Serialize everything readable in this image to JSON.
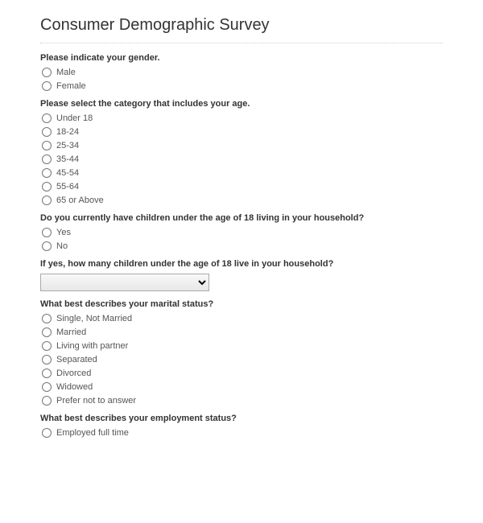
{
  "title": "Consumer Demographic Survey",
  "questions": {
    "gender": {
      "prompt": "Please indicate your gender.",
      "options": [
        "Male",
        "Female"
      ]
    },
    "age": {
      "prompt": "Please select the category that includes your age.",
      "options": [
        "Under 18",
        "18-24",
        "25-34",
        "35-44",
        "45-54",
        "55-64",
        "65 or Above"
      ]
    },
    "children": {
      "prompt": "Do you currently have children under the age of 18 living in your household?",
      "options": [
        "Yes",
        "No"
      ]
    },
    "children_count": {
      "prompt": "If yes, how many children under the age of 18 live in your household?"
    },
    "marital": {
      "prompt": "What best describes your marital status?",
      "options": [
        "Single, Not Married",
        "Married",
        "Living with partner",
        "Separated",
        "Divorced",
        "Widowed",
        "Prefer not to answer"
      ]
    },
    "employment": {
      "prompt": "What best describes your employment status?",
      "options": [
        "Employed full time"
      ]
    }
  }
}
